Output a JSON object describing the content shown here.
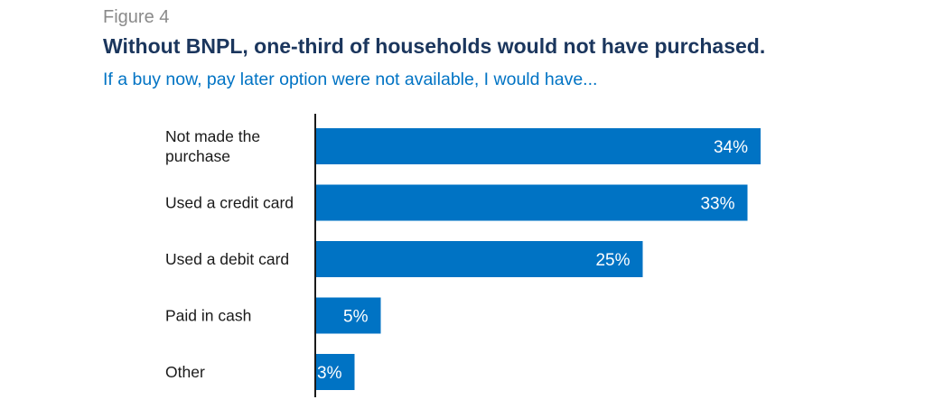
{
  "figure_label": "Figure 4",
  "chart_data": {
    "type": "bar",
    "orientation": "horizontal",
    "title": "Without BNPL, one-third of households would not have purchased.",
    "subtitle": "If a buy now, pay later option were not available, I would have...",
    "categories": [
      "Not made the purchase",
      "Used a credit card",
      "Used a debit card",
      "Paid in cash",
      "Other"
    ],
    "category_lines": [
      [
        "Not made the",
        "purchase"
      ],
      [
        "Used a credit card"
      ],
      [
        "Used a debit card"
      ],
      [
        "Paid in cash"
      ],
      [
        "Other"
      ]
    ],
    "values": [
      34,
      33,
      25,
      5,
      3
    ],
    "value_labels": [
      "34%",
      "33%",
      "25%",
      "5%",
      "3%"
    ],
    "unit": "%",
    "xlim": [
      0,
      40
    ],
    "grid": false,
    "legend": "none",
    "bar_color": "#0073c4",
    "axis_color": "#1a1a1a"
  }
}
